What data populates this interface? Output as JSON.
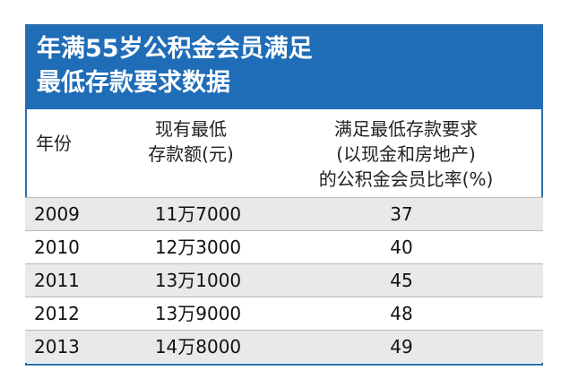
{
  "title": {
    "line1": "年满55岁公积金会员满足",
    "line2": "最低存款要求数据"
  },
  "headers": {
    "year": "年份",
    "amount_line1": "现有最低",
    "amount_line2": "存款额(元)",
    "rate_line1": "满足最低存款要求",
    "rate_line2": "(以现金和房地产)",
    "rate_line3": "的公积金会员比率(%)"
  },
  "rows": [
    {
      "year": "2009",
      "amount": "11万7000",
      "rate": "37"
    },
    {
      "year": "2010",
      "amount": "12万3000",
      "rate": "40"
    },
    {
      "year": "2011",
      "amount": "13万1000",
      "rate": "45"
    },
    {
      "year": "2012",
      "amount": "13万9000",
      "rate": "48"
    },
    {
      "year": "2013",
      "amount": "14万8000",
      "rate": "49"
    }
  ],
  "colors": {
    "title_bg": "#1f6cb7",
    "stripe": "#e9e9e9"
  }
}
